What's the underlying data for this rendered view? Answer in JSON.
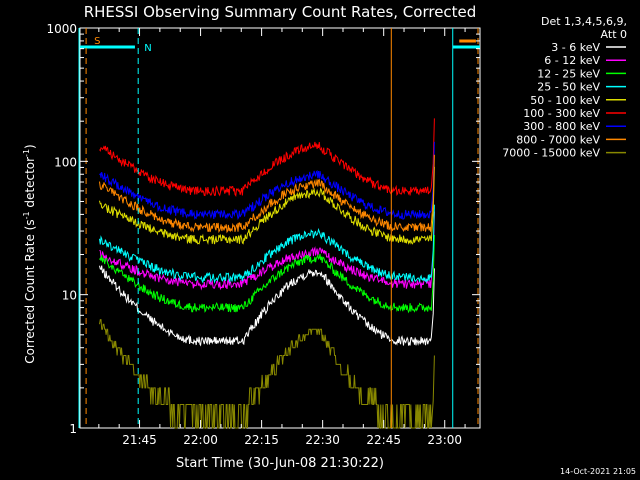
{
  "chart_data": {
    "type": "line",
    "title": "RHESSI Observing Summary Count Rates, Corrected",
    "xlabel": "Start Time (30-Jun-08 21:30:22)",
    "ylabel_parts": [
      "Corrected Count Rate (s",
      "-1",
      " detector",
      "-1",
      ")"
    ],
    "yscale": "log",
    "ylim": [
      1,
      1000
    ],
    "xlim_min": [
      0,
      98.3
    ],
    "x_unit": "minutes since 21:30:22",
    "x_ticks": [
      {
        "min": 14.63,
        "label": "21:45"
      },
      {
        "min": 29.63,
        "label": "22:00"
      },
      {
        "min": 44.63,
        "label": "22:15"
      },
      {
        "min": 59.63,
        "label": "22:30"
      },
      {
        "min": 74.63,
        "label": "22:45"
      },
      {
        "min": 89.63,
        "label": "23:00"
      }
    ],
    "y_ticks": [
      {
        "value": 1,
        "label": "1"
      },
      {
        "value": 10,
        "label": "10"
      },
      {
        "value": 100,
        "label": "100"
      },
      {
        "value": 1000,
        "label": "1000"
      }
    ],
    "legend_header": [
      "Det 1,3,4,5,6,9,",
      "Att 0"
    ],
    "series": [
      {
        "name": "3 - 6 keV",
        "color": "#ffffff",
        "base": 16,
        "dip": 4.5,
        "peak": 15,
        "style": "noisy"
      },
      {
        "name": "6 - 12 keV",
        "color": "#ff00ff",
        "base": 20,
        "dip": 12,
        "peak": 21,
        "style": "noisy"
      },
      {
        "name": "12 - 25 keV",
        "color": "#00ff00",
        "base": 19,
        "dip": 8,
        "peak": 19,
        "style": "noisy"
      },
      {
        "name": "25 - 50 keV",
        "color": "#00ffff",
        "base": 26,
        "dip": 13.5,
        "peak": 29,
        "style": "noisy"
      },
      {
        "name": "50 - 100 keV",
        "color": "#dddd00",
        "base": 48,
        "dip": 26,
        "peak": 59,
        "style": "noisy"
      },
      {
        "name": "100 - 300 keV",
        "color": "#ff0000",
        "base": 130,
        "dip": 60,
        "peak": 130,
        "style": "noisy"
      },
      {
        "name": "300 - 800 keV",
        "color": "#0000ff",
        "base": 80,
        "dip": 40,
        "peak": 79,
        "style": "noisy"
      },
      {
        "name": "800 - 7000 keV",
        "color": "#ff8800",
        "base": 68,
        "dip": 32,
        "peak": 68,
        "style": "noisy"
      },
      {
        "name": "7000 - 15000 keV",
        "color": "#888800",
        "base": 6,
        "dip": 1,
        "peak": 5,
        "style": "steps"
      }
    ],
    "annotations": {
      "s_flag": "S",
      "n_flag": "N",
      "saa_interval_min": [
        0,
        13.5
      ],
      "night_start_min": [
        0,
        14.3
      ],
      "night_end_min": [
        91.6,
        98.3
      ],
      "saa_start_min": 1.5,
      "saa_end_min": 76.5
    }
  },
  "footer_timestamp": "14-Oct-2021 21:05"
}
